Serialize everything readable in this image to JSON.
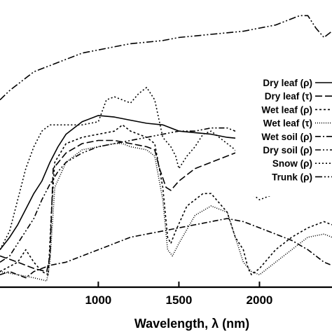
{
  "chart_data": {
    "type": "line",
    "title": "",
    "xlabel": "Wavelength, λ (nm)",
    "ylabel": "",
    "xlim": [
      390,
      2450
    ],
    "ylim": [
      0,
      0.92
    ],
    "x_ticks": [
      {
        "value": 1000,
        "label": "1000"
      },
      {
        "value": 1500,
        "label": "1500"
      },
      {
        "value": 2000,
        "label": "2000"
      }
    ],
    "grid": false,
    "legend_position": "right",
    "series": [
      {
        "name": "Dry leaf (ρ)",
        "dash": "solid",
        "x": [
          390,
          450,
          500,
          550,
          600,
          650,
          700,
          750,
          800,
          900,
          1000,
          1100,
          1200,
          1300,
          1400,
          1500,
          1600,
          1700,
          1800,
          1900,
          2000,
          2100,
          2200,
          2300,
          2400,
          2450
        ],
        "y": [
          0.12,
          0.16,
          0.2,
          0.25,
          0.3,
          0.34,
          0.4,
          0.45,
          0.49,
          0.53,
          0.55,
          0.545,
          0.535,
          0.525,
          0.52,
          0.5,
          0.495,
          0.49,
          0.48,
          0.475,
          0.42,
          0.41,
          0.38,
          0.36,
          0.35,
          0.34
        ]
      },
      {
        "name": "Dry leaf (τ)",
        "dash": "10 4",
        "x": [
          390,
          500,
          600,
          680,
          700,
          720,
          800,
          900,
          1000,
          1100,
          1200,
          1300,
          1350,
          1380,
          1420,
          1450,
          1500,
          1600,
          1700,
          1800,
          1900,
          1930,
          2000,
          2100,
          2200,
          2300,
          2400,
          2450
        ],
        "y": [
          0.1,
          0.08,
          0.06,
          0.05,
          0.1,
          0.38,
          0.43,
          0.46,
          0.47,
          0.47,
          0.46,
          0.45,
          0.44,
          0.38,
          0.32,
          0.31,
          0.34,
          0.38,
          0.4,
          0.42,
          0.44,
          0.36,
          0.32,
          0.31,
          0.32,
          0.34,
          0.35,
          0.34
        ]
      },
      {
        "name": "Wet leaf (ρ)",
        "dash": "3 3",
        "x": [
          390,
          500,
          550,
          600,
          650,
          690,
          710,
          730,
          800,
          900,
          1000,
          1100,
          1150,
          1200,
          1300,
          1350,
          1400,
          1430,
          1450,
          1480,
          1550,
          1650,
          1700,
          1800,
          1850,
          1900,
          1930,
          1950,
          2000,
          2100,
          2200,
          2300,
          2400,
          2450
        ],
        "y": [
          0.05,
          0.08,
          0.12,
          0.08,
          0.05,
          0.04,
          0.25,
          0.4,
          0.46,
          0.48,
          0.49,
          0.5,
          0.52,
          0.5,
          0.48,
          0.46,
          0.32,
          0.16,
          0.14,
          0.18,
          0.26,
          0.3,
          0.3,
          0.24,
          0.16,
          0.12,
          0.06,
          0.04,
          0.06,
          0.12,
          0.16,
          0.19,
          0.21,
          0.2
        ]
      },
      {
        "name": "Wet leaf (τ)",
        "dash": "1 2",
        "x": [
          390,
          500,
          600,
          680,
          700,
          730,
          800,
          900,
          1000,
          1100,
          1150,
          1200,
          1300,
          1350,
          1400,
          1430,
          1460,
          1500,
          1600,
          1700,
          1800,
          1850,
          1900,
          1950,
          2000,
          2100,
          2200,
          2300,
          2400,
          2450
        ],
        "y": [
          0.05,
          0.04,
          0.03,
          0.02,
          0.08,
          0.32,
          0.4,
          0.44,
          0.45,
          0.46,
          0.46,
          0.45,
          0.44,
          0.42,
          0.28,
          0.12,
          0.1,
          0.14,
          0.23,
          0.26,
          0.24,
          0.16,
          0.08,
          0.05,
          0.04,
          0.08,
          0.12,
          0.16,
          0.17,
          0.16
        ]
      },
      {
        "name": "Wet soil (ρ)",
        "dash": "8 3 2 3",
        "x": [
          390,
          450,
          500,
          550,
          600,
          700,
          800,
          900,
          1000,
          1100,
          1200,
          1300,
          1400,
          1500,
          1600,
          1700,
          1800,
          1900,
          2000,
          2100,
          2200,
          2300,
          2400,
          2450
        ],
        "y": [
          0.04,
          0.05,
          0.04,
          0.03,
          0.05,
          0.07,
          0.08,
          0.1,
          0.12,
          0.14,
          0.16,
          0.17,
          0.18,
          0.19,
          0.2,
          0.21,
          0.22,
          0.21,
          0.19,
          0.17,
          0.15,
          0.12,
          0.08,
          0.07
        ]
      },
      {
        "name": "Dry soil (ρ)",
        "dash": "8 3 2 3 2 3",
        "x": [
          390,
          450,
          500,
          600,
          650,
          700,
          750,
          800,
          900,
          1000,
          1100,
          1200,
          1300,
          1400,
          1500,
          1600,
          1700,
          1800,
          1900,
          2000,
          2100,
          2150,
          2200,
          2300,
          2400,
          2450
        ],
        "y": [
          0.08,
          0.1,
          0.14,
          0.22,
          0.28,
          0.33,
          0.37,
          0.4,
          0.43,
          0.45,
          0.46,
          0.47,
          0.48,
          0.49,
          0.5,
          0.5,
          0.51,
          0.51,
          0.49,
          0.46,
          0.43,
          0.42,
          0.4,
          0.37,
          0.35,
          0.34
        ]
      },
      {
        "name": "Snow (ρ)",
        "dash": "2 3",
        "x": [
          390,
          450,
          500,
          550,
          600,
          650,
          700,
          800,
          900,
          1000,
          1050,
          1100,
          1200,
          1250,
          1300,
          1350,
          1400,
          1450,
          1480,
          1500,
          1550,
          1600,
          1650,
          1700,
          1750,
          1800,
          1850,
          1900,
          1950,
          2000,
          2050,
          2100,
          2200,
          2300,
          2400,
          2450
        ],
        "y": [
          0.12,
          0.18,
          0.28,
          0.38,
          0.45,
          0.5,
          0.52,
          0.52,
          0.52,
          0.53,
          0.6,
          0.61,
          0.59,
          0.62,
          0.64,
          0.6,
          0.48,
          0.45,
          0.42,
          0.38,
          0.42,
          0.45,
          0.49,
          0.5,
          0.48,
          0.46,
          0.44,
          0.38,
          0.3,
          0.28,
          0.29,
          0.3,
          0.33,
          0.35,
          0.35,
          0.34
        ]
      },
      {
        "name": "Trunk (ρ)",
        "dash": "10 3 2 3 2 3",
        "x": [
          390,
          450,
          500,
          550,
          600,
          700,
          800,
          900,
          1000,
          1100,
          1200,
          1300,
          1400,
          1500,
          1600,
          1700,
          1800,
          1900,
          2000,
          2100,
          2150,
          2200,
          2250,
          2300,
          2350,
          2400,
          2450
        ],
        "y": [
          0.6,
          0.63,
          0.65,
          0.67,
          0.69,
          0.71,
          0.73,
          0.75,
          0.76,
          0.77,
          0.78,
          0.785,
          0.79,
          0.8,
          0.805,
          0.81,
          0.815,
          0.82,
          0.83,
          0.84,
          0.85,
          0.86,
          0.87,
          0.87,
          0.83,
          0.8,
          0.82
        ]
      }
    ]
  }
}
